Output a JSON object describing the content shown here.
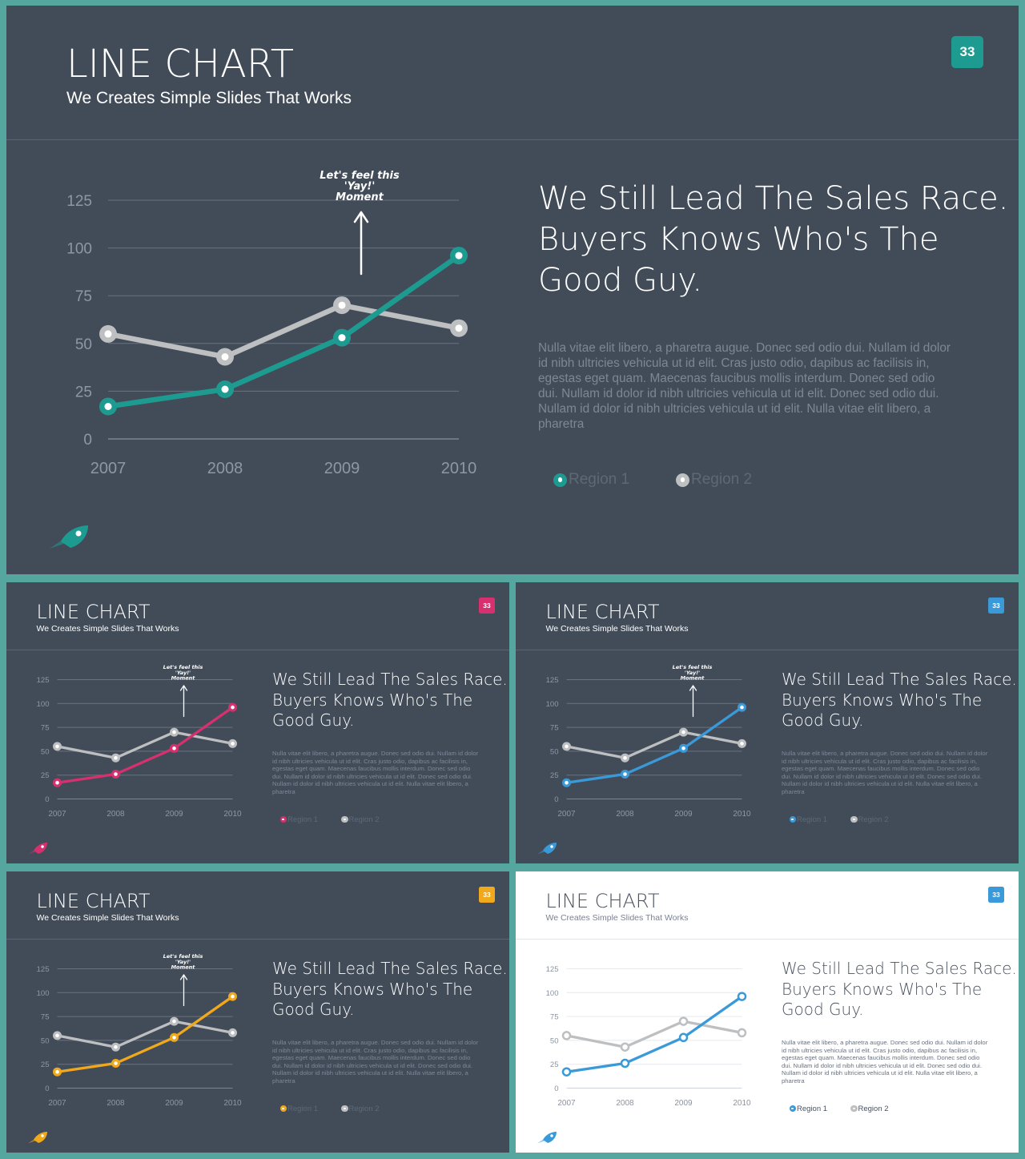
{
  "slides": [
    {
      "theme": "dark",
      "accent": "#1e9b90",
      "region2_color": "#bdbfc1",
      "annotation_color": "#ffffff",
      "title": "LINE CHART",
      "subtitle": "We Creates Simple Slides That Works",
      "page_number": "33",
      "headline_lines": [
        "We Still Lead The Sales Race.",
        "Buyers Knows Who's The",
        "Good Guy."
      ],
      "body": "Nulla vitae elit libero, a pharetra augue. Donec sed odio dui. Nullam id dolor id nibh ultricies vehicula ut id elit. Cras justo odio, dapibus ac facilisis in, egestas eget quam. Maecenas faucibus mollis interdum. Donec sed odio dui. Nullam id dolor id nibh ultricies vehicula ut id elit. Donec sed odio dui. Nullam id dolor id nibh ultricies vehicula ut id elit. Nulla vitae elit libero, a pharetra",
      "annotation_lines": [
        "Let's feel this",
        "'Yay!'",
        "Moment"
      ],
      "rocket_icon": "rocket-icon"
    },
    {
      "theme": "dark",
      "accent": "#d6306f",
      "region2_color": "#bdbfc1",
      "annotation_color": "#ffffff",
      "title": "LINE CHART",
      "subtitle": "We Creates Simple Slides That Works",
      "page_number": "33",
      "headline_lines": [
        "We Still Lead The Sales Race.",
        "Buyers Knows Who's The",
        "Good Guy."
      ],
      "body": "Nulla vitae elit libero, a pharetra augue. Donec sed odio dui. Nullam id dolor id nibh ultricies vehicula ut id elit. Cras justo odio, dapibus ac facilisis in, egestas eget quam. Maecenas faucibus mollis interdum. Donec sed odio dui. Nullam id dolor id nibh ultricies vehicula ut id elit. Donec sed odio dui. Nullam id dolor id nibh ultricies vehicula ut id elit. Nulla vitae elit libero, a pharetra",
      "annotation_lines": [
        "Let's feel this",
        "'Yay!'",
        "Moment"
      ],
      "rocket_icon": "rocket-icon"
    },
    {
      "theme": "dark",
      "accent": "#3a9ad9",
      "region2_color": "#bdbfc1",
      "annotation_color": "#ffffff",
      "title": "LINE CHART",
      "subtitle": "We Creates Simple Slides That Works",
      "page_number": "33",
      "headline_lines": [
        "We Still Lead The Sales Race.",
        "Buyers Knows Who's The",
        "Good Guy."
      ],
      "body": "Nulla vitae elit libero, a pharetra augue. Donec sed odio dui. Nullam id dolor id nibh ultricies vehicula ut id elit. Cras justo odio, dapibus ac facilisis in, egestas eget quam. Maecenas faucibus mollis interdum. Donec sed odio dui. Nullam id dolor id nibh ultricies vehicula ut id elit. Donec sed odio dui. Nullam id dolor id nibh ultricies vehicula ut id elit. Nulla vitae elit libero, a pharetra",
      "annotation_lines": [
        "Let's feel this",
        "'Yay!'",
        "Moment"
      ],
      "rocket_icon": "rocket-icon"
    },
    {
      "theme": "dark",
      "accent": "#f0a81c",
      "region2_color": "#bdbfc1",
      "annotation_color": "#ffffff",
      "title": "LINE CHART",
      "subtitle": "We Creates Simple Slides That Works",
      "page_number": "33",
      "headline_lines": [
        "We Still Lead The Sales Race.",
        "Buyers Knows Who's The",
        "Good Guy."
      ],
      "body": "Nulla vitae elit libero, a pharetra augue. Donec sed odio dui. Nullam id dolor id nibh ultricies vehicula ut id elit. Cras justo odio, dapibus ac facilisis in, egestas eget quam. Maecenas faucibus mollis interdum. Donec sed odio dui. Nullam id dolor id nibh ultricies vehicula ut id elit. Donec sed odio dui. Nullam id dolor id nibh ultricies vehicula ut id elit. Nulla vitae elit libero, a pharetra",
      "annotation_lines": [
        "Let's feel this",
        "'Yay!'",
        "Moment"
      ],
      "rocket_icon": "rocket-icon"
    },
    {
      "theme": "light",
      "accent": "#3a9ad9",
      "region2_color": "#bdbfc1",
      "annotation_color": "",
      "title": "LINE CHART",
      "subtitle": "We Creates Simple Slides That Works",
      "page_number": "33",
      "headline_lines": [
        "We Still Lead The Sales Race.",
        "Buyers Knows Who's The",
        "Good Guy."
      ],
      "body": "Nulla vitae elit libero, a pharetra augue. Donec sed odio dui. Nullam id dolor id nibh ultricies vehicula ut id elit. Cras justo odio, dapibus ac facilisis in, egestas eget quam. Maecenas faucibus mollis interdum. Donec sed odio dui. Nullam id dolor id nibh ultricies vehicula ut id elit. Donec sed odio dui. Nullam id dolor id nibh ultricies vehicula ut id elit. Nulla vitae elit libero, a pharetra",
      "annotation_lines": [],
      "rocket_icon": "rocket-icon"
    }
  ],
  "chart_data": {
    "type": "line",
    "x": [
      "2007",
      "2008",
      "2009",
      "2010"
    ],
    "yticks": [
      "0",
      "25",
      "50",
      "75",
      "100",
      "125"
    ],
    "ylim": [
      0,
      125
    ],
    "grid": true,
    "legend_position": "bottom",
    "series": [
      {
        "name": "Region 1",
        "values": [
          17,
          26,
          53,
          96
        ]
      },
      {
        "name": "Region 2",
        "values": [
          55,
          43,
          70,
          58
        ]
      }
    ]
  }
}
